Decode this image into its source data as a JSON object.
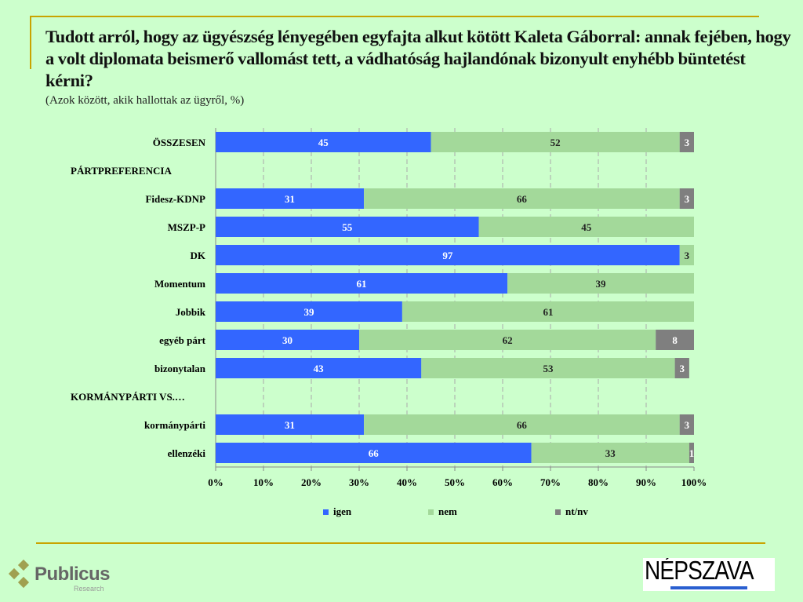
{
  "title": "Tudott arról, hogy az ügyészség lényegében egyfajta alkut kötött Kaleta Gáborral: annak fejében, hogy a volt diplomata beismerő vallomást tett, a vádhatóság hajlandónak bizonyult enyhébb büntetést kérni?",
  "subtitle": "(Azok között, akik hallottak az ügyről, %)",
  "chart_data": {
    "type": "bar",
    "orientation": "horizontal-stacked-100",
    "categories": [
      "ÖSSZESEN",
      "PÁRTPREFERENCIA",
      "Fidesz-KDNP",
      "MSZP-P",
      "DK",
      "Momentum",
      "Jobbik",
      "egyéb párt",
      "bizonytalan",
      "KORMÁNYPÁRTI VS.…",
      "kormánypárti",
      "ellenzéki"
    ],
    "series": [
      {
        "name": "igen",
        "color": "#3366ff",
        "values": [
          45,
          null,
          31,
          55,
          97,
          61,
          39,
          30,
          43,
          null,
          31,
          66
        ]
      },
      {
        "name": "nem",
        "color": "#a3d99a",
        "values": [
          52,
          null,
          66,
          45,
          3,
          39,
          61,
          62,
          53,
          null,
          66,
          33
        ]
      },
      {
        "name": "nt/nv",
        "color": "#7f7f7f",
        "values": [
          3,
          null,
          3,
          0,
          0,
          0,
          0,
          8,
          3,
          null,
          3,
          1
        ]
      }
    ],
    "xticks": [
      "0%",
      "10%",
      "20%",
      "30%",
      "40%",
      "50%",
      "60%",
      "70%",
      "80%",
      "90%",
      "100%"
    ],
    "xlim": [
      0,
      100
    ],
    "grid": true,
    "legend": "bottom"
  },
  "logos": {
    "left": "Publicus",
    "left_sub": "Research",
    "right": "NÉPSZAVA"
  }
}
